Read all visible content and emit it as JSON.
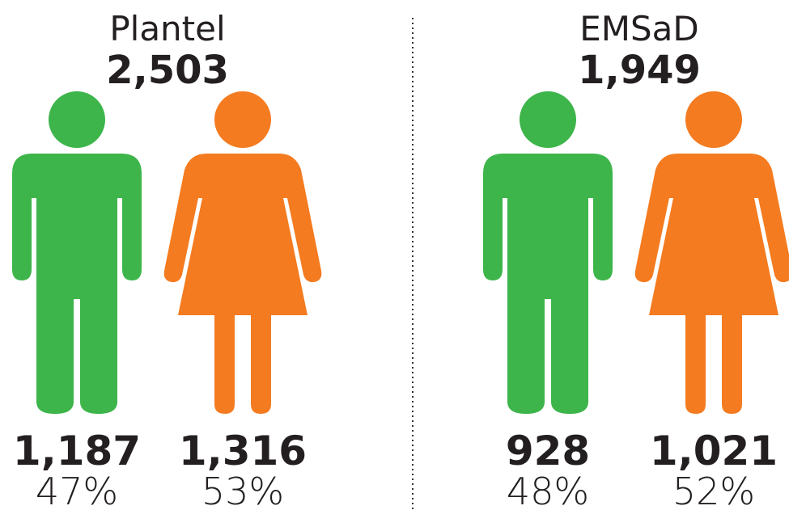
{
  "panels": [
    {
      "title": "Plantel",
      "total": "2,503",
      "groups": [
        {
          "count": "1,187",
          "percent": "47%"
        },
        {
          "count": "1,316",
          "percent": "53%"
        }
      ]
    },
    {
      "title": "EMSaD",
      "total": "1,949",
      "groups": [
        {
          "count": "928",
          "percent": "48%"
        },
        {
          "count": "1,021",
          "percent": "52%"
        }
      ]
    }
  ]
}
